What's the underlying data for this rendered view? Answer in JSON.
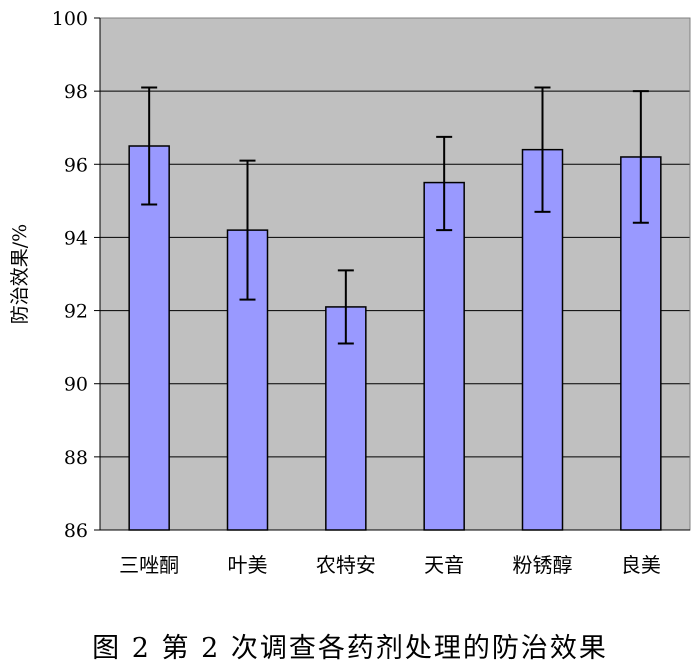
{
  "caption": "图 2   第 2 次调查各药剂处理的防治效果",
  "chart_data": {
    "type": "bar",
    "categories": [
      "三唑酮",
      "叶美",
      "农特安",
      "天音",
      "粉锈醇",
      "良美"
    ],
    "values": [
      96.5,
      94.2,
      92.1,
      95.5,
      96.4,
      96.2
    ],
    "error_low": [
      94.9,
      92.3,
      91.1,
      94.2,
      94.7,
      94.4
    ],
    "error_high": [
      98.1,
      96.1,
      93.1,
      96.75,
      98.1,
      98.0
    ],
    "ylabel": "防治效果/%",
    "ylim": [
      86,
      100
    ],
    "yticks": [
      "86",
      "88",
      "90",
      "92",
      "94",
      "96",
      "98",
      "100"
    ],
    "grid": true,
    "colors": {
      "plot_background": "#c0c0c0",
      "bar_fill": "#9999ff",
      "bar_stroke": "#000000",
      "gridline": "#000000"
    }
  }
}
